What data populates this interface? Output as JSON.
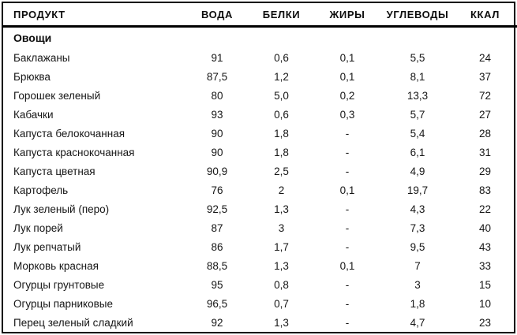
{
  "colors": {
    "background": "#ffffff",
    "border": "#000000",
    "text": "#161616"
  },
  "table": {
    "columns": [
      "ПРОДУКТ",
      "ВОДА",
      "БЕЛКИ",
      "ЖИРЫ",
      "УГЛЕВОДЫ",
      "ККАЛ"
    ],
    "section_label": "Овощи",
    "rows": [
      {
        "product": "Баклажаны",
        "values": [
          "91",
          "0,6",
          "0,1",
          "5,5",
          "24"
        ]
      },
      {
        "product": "Брюква",
        "values": [
          "87,5",
          "1,2",
          "0,1",
          "8,1",
          "37"
        ]
      },
      {
        "product": "Горошек зеленый",
        "values": [
          "80",
          "5,0",
          "0,2",
          "13,3",
          "72"
        ]
      },
      {
        "product": "Кабачки",
        "values": [
          "93",
          "0,6",
          "0,3",
          "5,7",
          "27"
        ]
      },
      {
        "product": "Капуста белокочанная",
        "values": [
          "90",
          "1,8",
          "-",
          "5,4",
          "28"
        ]
      },
      {
        "product": "Капуста краснокочанная",
        "values": [
          "90",
          "1,8",
          "-",
          "6,1",
          "31"
        ]
      },
      {
        "product": "Капуста цветная",
        "values": [
          "90,9",
          "2,5",
          "-",
          "4,9",
          "29"
        ]
      },
      {
        "product": "Картофель",
        "values": [
          "76",
          "2",
          "0,1",
          "19,7",
          "83"
        ]
      },
      {
        "product": "Лук зеленый (перо)",
        "values": [
          "92,5",
          "1,3",
          "-",
          "4,3",
          "22"
        ]
      },
      {
        "product": "Лук порей",
        "values": [
          "87",
          "3",
          "-",
          "7,3",
          "40"
        ]
      },
      {
        "product": "Лук репчатый",
        "values": [
          "86",
          "1,7",
          "-",
          "9,5",
          "43"
        ]
      },
      {
        "product": "Морковь красная",
        "values": [
          "88,5",
          "1,3",
          "0,1",
          "7",
          "33"
        ]
      },
      {
        "product": "Огурцы грунтовые",
        "values": [
          "95",
          "0,8",
          "-",
          "3",
          "15"
        ]
      },
      {
        "product": "Огурцы парниковые",
        "values": [
          "96,5",
          "0,7",
          "-",
          "1,8",
          "10"
        ]
      },
      {
        "product": "Перец зеленый сладкий",
        "values": [
          "92",
          "1,3",
          "-",
          "4,7",
          "23"
        ]
      }
    ]
  }
}
